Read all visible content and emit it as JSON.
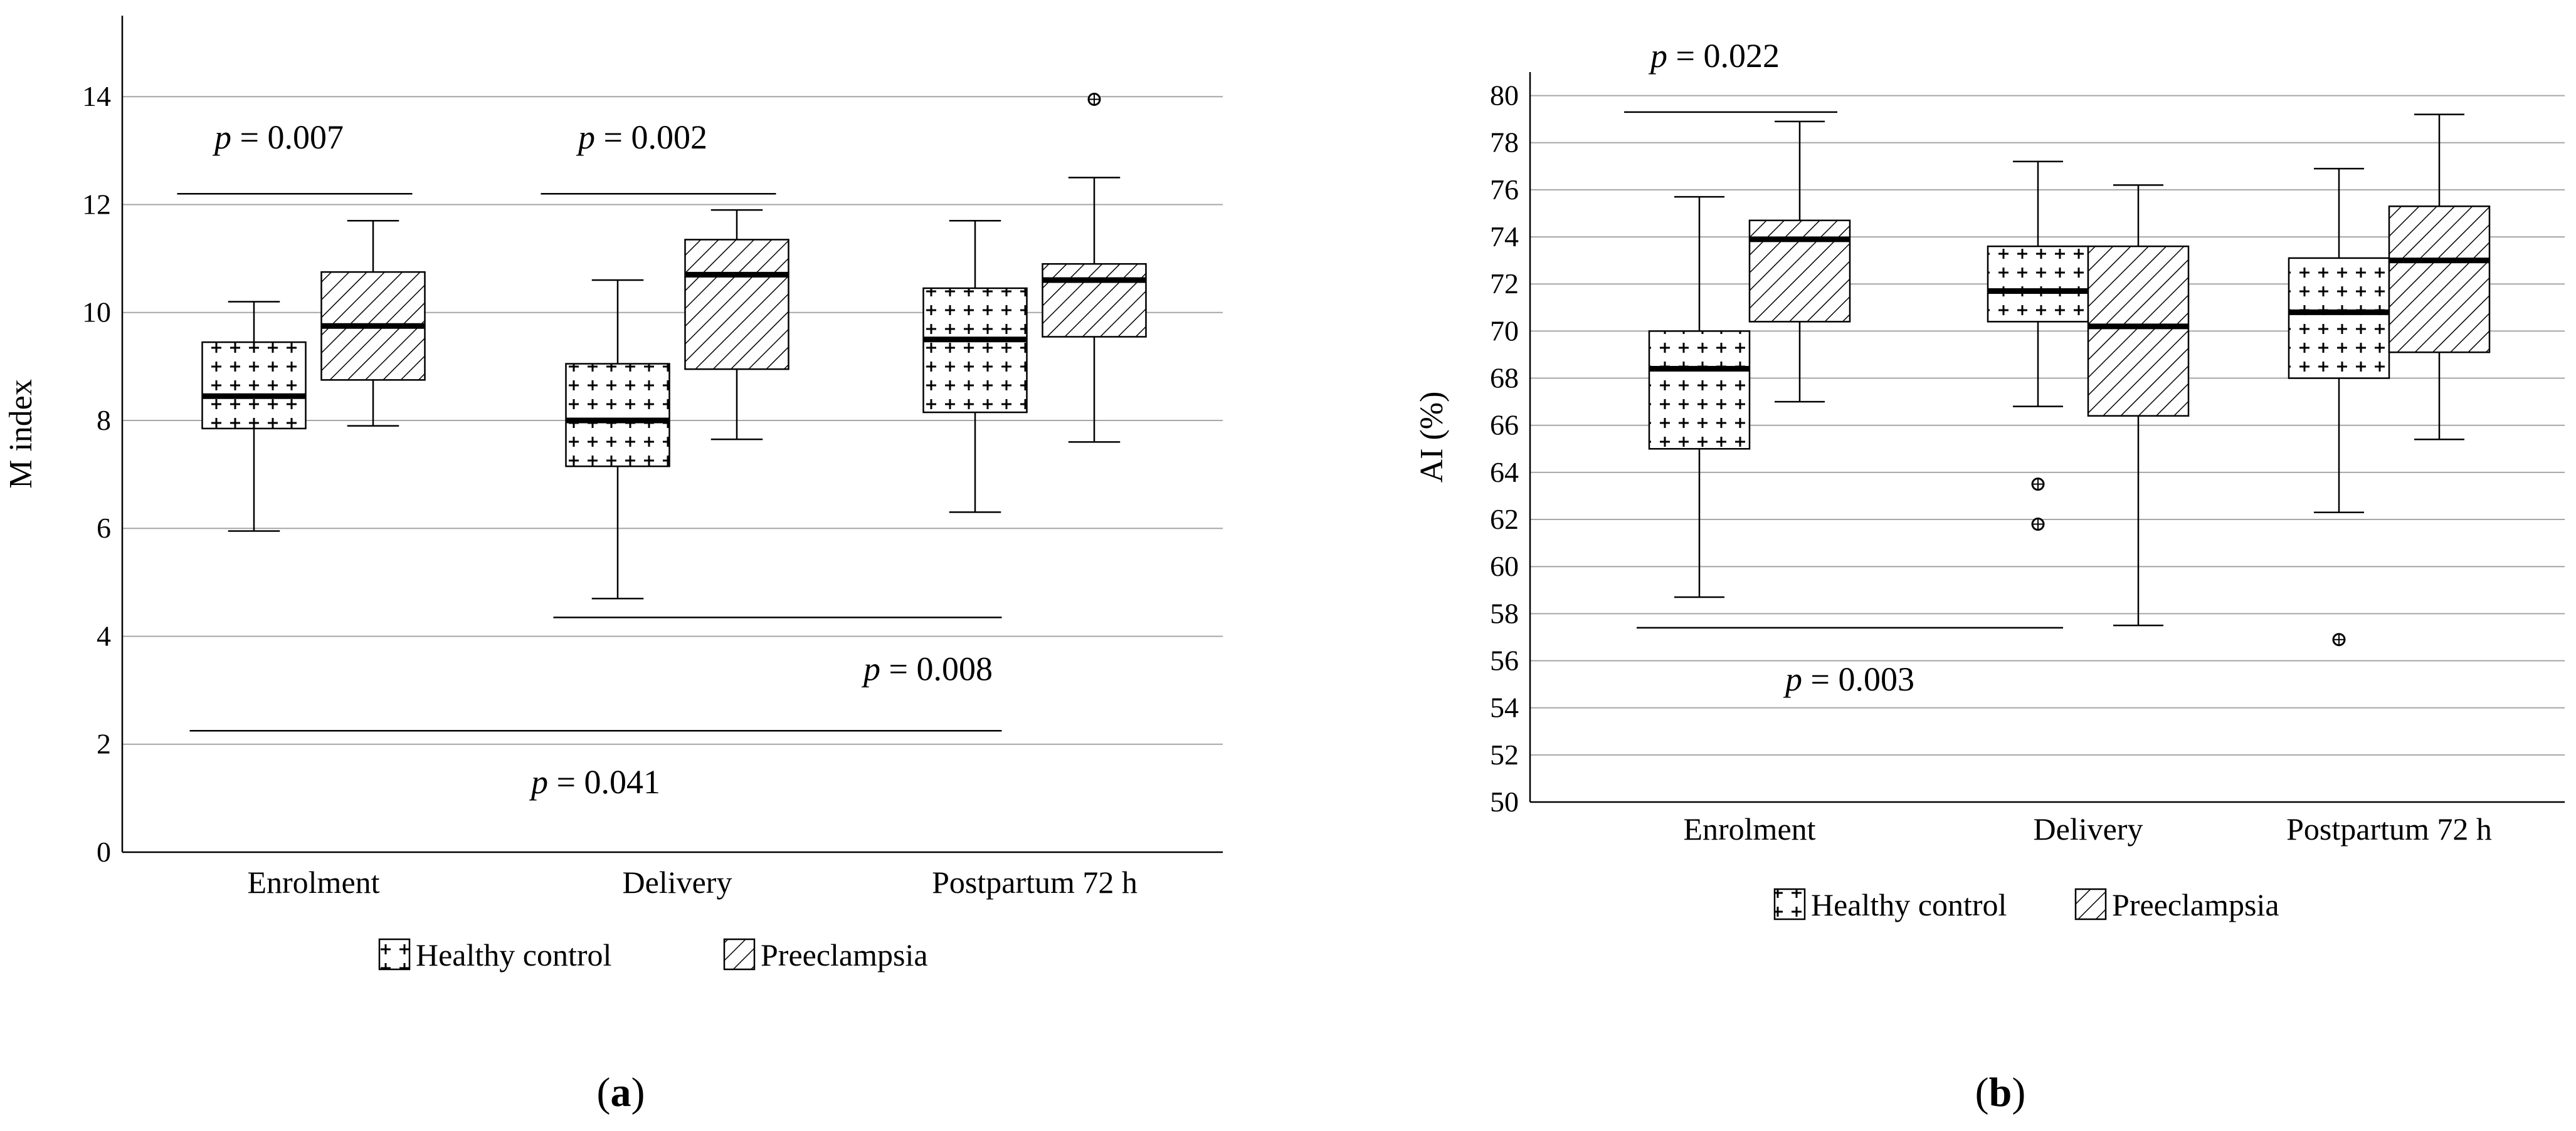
{
  "chart_data": [
    {
      "type": "box",
      "panel_label": "(a)",
      "ylabel": "M index",
      "xlabel": "",
      "ylim": [
        0,
        15.5
      ],
      "yticks": [
        0,
        2,
        4,
        6,
        8,
        10,
        12,
        14
      ],
      "grid": true,
      "categories": [
        "Enrolment",
        "Delivery",
        "Postpartum 72 h"
      ],
      "series": [
        {
          "name": "Healthy control",
          "pattern": "crosses",
          "boxes": [
            {
              "min": 5.95,
              "q1": 7.85,
              "median": 8.45,
              "q3": 9.45,
              "max": 10.2,
              "outliers": []
            },
            {
              "min": 4.7,
              "q1": 7.15,
              "median": 8.0,
              "q3": 9.05,
              "max": 10.6,
              "outliers": []
            },
            {
              "min": 6.3,
              "q1": 8.15,
              "median": 9.5,
              "q3": 10.45,
              "max": 11.7,
              "outliers": []
            }
          ]
        },
        {
          "name": "Preeclampsia",
          "pattern": "diagonal",
          "boxes": [
            {
              "min": 7.9,
              "q1": 8.75,
              "median": 9.75,
              "q3": 10.75,
              "max": 11.7,
              "outliers": []
            },
            {
              "min": 7.65,
              "q1": 8.95,
              "median": 10.7,
              "q3": 11.35,
              "max": 11.9,
              "outliers": []
            },
            {
              "min": 7.6,
              "q1": 9.55,
              "median": 10.6,
              "q3": 10.9,
              "max": 12.5,
              "outliers": [
                13.95
              ]
            }
          ]
        }
      ],
      "annotations": [
        {
          "text": "p = 0.007",
          "from": "Enrolment/Healthy control",
          "to": "Enrolment/Preeclampsia",
          "y": 12.2,
          "label_side": "above"
        },
        {
          "text": "p = 0.002",
          "from": "Delivery/Healthy control",
          "to": "Delivery/Preeclampsia",
          "y": 12.2,
          "label_side": "above"
        },
        {
          "text": "p = 0.008",
          "from": "Delivery/Healthy control",
          "to": "Postpartum 72 h/Healthy control",
          "y": 4.35,
          "label_side": "below"
        },
        {
          "text": "p = 0.041",
          "from": "Enrolment/Healthy control",
          "to": "Postpartum 72 h/Healthy control",
          "y": 2.25,
          "label_side": "below"
        }
      ],
      "legend": {
        "position": "bottom",
        "entries": [
          "Healthy control",
          "Preeclampsia"
        ]
      }
    },
    {
      "type": "box",
      "panel_label": "(b)",
      "ylabel": "AI (%)",
      "xlabel": "",
      "ylim": [
        50,
        81
      ],
      "yticks": [
        50,
        52,
        54,
        56,
        58,
        60,
        62,
        64,
        66,
        68,
        70,
        72,
        74,
        76,
        78,
        80
      ],
      "grid": true,
      "categories": [
        "Enrolment",
        "Delivery",
        "Postpartum 72 h"
      ],
      "series": [
        {
          "name": "Healthy control",
          "pattern": "crosses",
          "boxes": [
            {
              "min": 58.7,
              "q1": 65.0,
              "median": 68.4,
              "q3": 70.0,
              "max": 75.7,
              "outliers": []
            },
            {
              "min": 66.8,
              "q1": 70.4,
              "median": 71.7,
              "q3": 73.6,
              "max": 77.2,
              "outliers": [
                63.5,
                61.8
              ]
            },
            {
              "min": 62.3,
              "q1": 68.0,
              "median": 70.8,
              "q3": 73.1,
              "max": 76.9,
              "outliers": [
                56.9
              ]
            }
          ]
        },
        {
          "name": "Preeclampsia",
          "pattern": "diagonal",
          "boxes": [
            {
              "min": 67.0,
              "q1": 70.4,
              "median": 73.9,
              "q3": 74.7,
              "max": 78.9,
              "outliers": []
            },
            {
              "min": 57.5,
              "q1": 66.4,
              "median": 70.2,
              "q3": 73.6,
              "max": 76.2,
              "outliers": []
            },
            {
              "min": 65.4,
              "q1": 69.1,
              "median": 73.0,
              "q3": 75.3,
              "max": 79.2,
              "outliers": []
            }
          ]
        }
      ],
      "annotations": [
        {
          "text": "p = 0.022",
          "from": "Enrolment/Healthy control",
          "to": "Enrolment/Preeclampsia",
          "y": 79.3,
          "label_side": "above"
        },
        {
          "text": "p = 0.003",
          "from": "Enrolment/Healthy control",
          "to": "Delivery/Healthy control",
          "y": 57.4,
          "label_side": "below"
        }
      ],
      "legend": {
        "position": "bottom",
        "entries": [
          "Healthy control",
          "Preeclampsia"
        ]
      }
    }
  ]
}
